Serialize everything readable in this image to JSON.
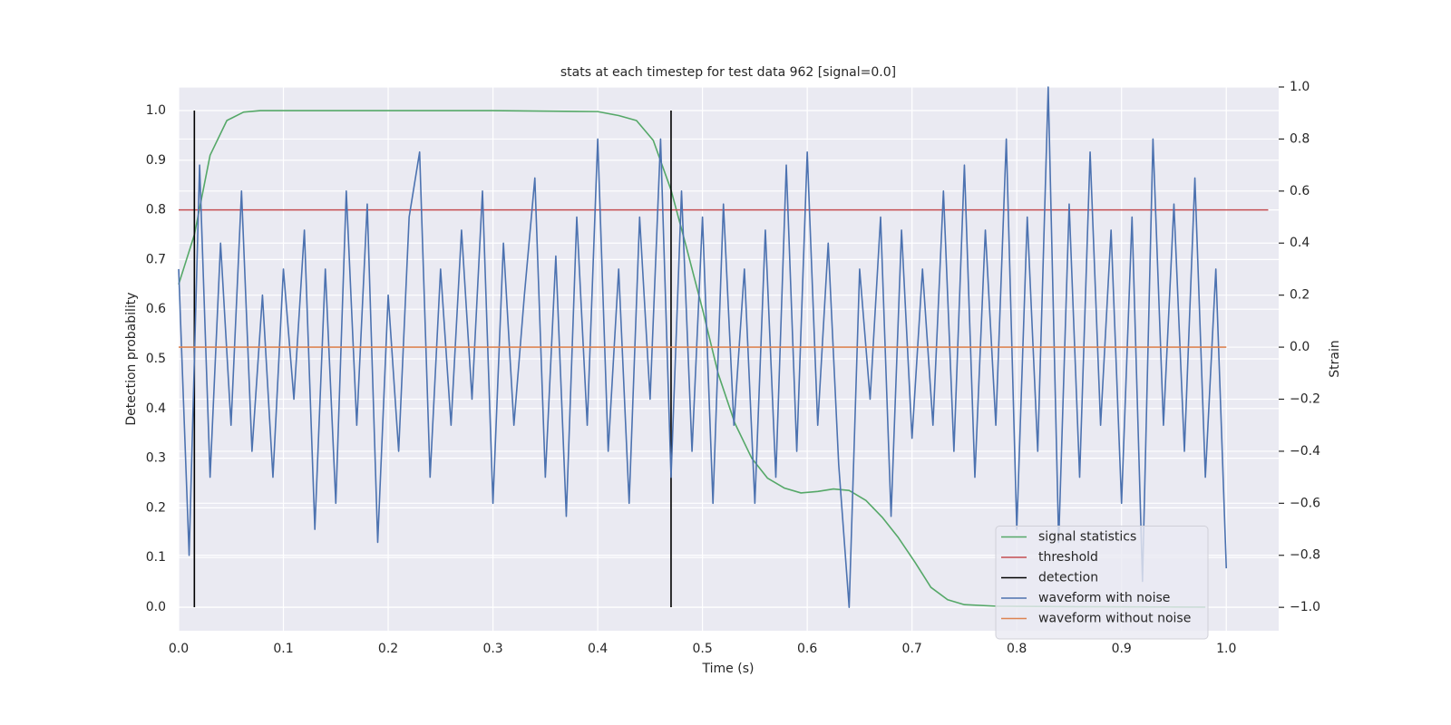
{
  "chart_data": {
    "type": "line",
    "title": "stats at each timestep for test data 962 [signal=0.0]",
    "x_label": "Time (s)",
    "y_label": "Detection probability",
    "y2_label": "Strain",
    "xlim": [
      0,
      1.05
    ],
    "ylim": [
      -0.0475,
      1.0475
    ],
    "y2lim": [
      -1.09,
      1.0
    ],
    "xticks": [
      {
        "value": 0,
        "label": "0.0"
      },
      0.1,
      0.2,
      0.3,
      0.4,
      0.5,
      0.6,
      0.7,
      0.8,
      0.9,
      {
        "value": 1,
        "label": "1.0"
      }
    ],
    "yticks": [
      {
        "value": 0,
        "label": "0.0"
      },
      0.1,
      0.2,
      0.3,
      0.4,
      0.5,
      0.6,
      0.7,
      0.8,
      0.9,
      {
        "value": 1,
        "label": "1.0"
      }
    ],
    "y2ticks": [
      {
        "value": -1,
        "label": "−1.0"
      },
      {
        "value": -0.8,
        "label": "−0.8"
      },
      {
        "value": -0.6,
        "label": "−0.6"
      },
      {
        "value": -0.4,
        "label": "−0.4"
      },
      {
        "value": -0.2,
        "label": "−0.2"
      },
      {
        "value": 0,
        "label": "0.0"
      },
      0.2,
      0.4,
      0.6,
      0.8,
      {
        "value": 1,
        "label": "1.0"
      }
    ],
    "grid": true,
    "legend": "lower right",
    "series": [
      {
        "name": "signal statistics",
        "color": "#55a868",
        "x": [
          0,
          0.015,
          0.03,
          0.046,
          0.062,
          0.078,
          0.1,
          0.2,
          0.3,
          0.4,
          0.42,
          0.437,
          0.453,
          0.47,
          0.484,
          0.5,
          0.515,
          0.531,
          0.547,
          0.562,
          0.578,
          0.594,
          0.61,
          0.625,
          0.64,
          0.656,
          0.672,
          0.687,
          0.703,
          0.718,
          0.734,
          0.75,
          0.78,
          0.85,
          0.98
        ],
        "values": [
          0.65,
          0.75,
          0.91,
          0.98,
          0.997,
          1.0,
          1.0,
          1.0,
          1.0,
          0.998,
          0.99,
          0.98,
          0.94,
          0.84,
          0.73,
          0.6,
          0.47,
          0.37,
          0.3,
          0.26,
          0.24,
          0.23,
          0.233,
          0.238,
          0.235,
          0.215,
          0.18,
          0.14,
          0.09,
          0.04,
          0.015,
          0.005,
          0.002,
          0.001,
          0
        ]
      },
      {
        "name": "threshold",
        "color": "#c44e52",
        "x": [
          0,
          1.04
        ],
        "values": [
          0.8,
          0.8
        ]
      },
      {
        "name": "detection",
        "color": "#000000",
        "x": [
          0.015,
          0.015,
          null,
          0.47,
          0.47
        ],
        "values": [
          0,
          1,
          null,
          0,
          1
        ]
      },
      {
        "name": "waveform with noise",
        "color": "#4c72b0",
        "axis": "y2",
        "x": [
          0,
          0.01,
          0.02,
          0.03,
          0.04,
          0.05,
          0.06,
          0.07,
          0.08,
          0.09,
          0.1,
          0.11,
          0.12,
          0.13,
          0.14,
          0.15,
          0.16,
          0.17,
          0.18,
          0.19,
          0.2,
          0.21,
          0.22,
          0.23,
          0.24,
          0.25,
          0.26,
          0.27,
          0.28,
          0.29,
          0.3,
          0.31,
          0.32,
          0.33,
          0.34,
          0.35,
          0.36,
          0.37,
          0.38,
          0.39,
          0.4,
          0.41,
          0.42,
          0.43,
          0.44,
          0.45,
          0.46,
          0.47,
          0.48,
          0.49,
          0.5,
          0.51,
          0.52,
          0.53,
          0.54,
          0.55,
          0.56,
          0.57,
          0.58,
          0.59,
          0.6,
          0.61,
          0.62,
          0.63,
          0.64,
          0.65,
          0.66,
          0.67,
          0.68,
          0.69,
          0.7,
          0.71,
          0.72,
          0.73,
          0.74,
          0.75,
          0.76,
          0.77,
          0.78,
          0.79,
          0.8,
          0.81,
          0.82,
          0.83,
          0.84,
          0.85,
          0.86,
          0.87,
          0.88,
          0.89,
          0.9,
          0.91,
          0.92,
          0.93,
          0.94,
          0.95,
          0.96,
          0.97,
          0.98,
          0.99,
          1.0
        ],
        "values": [
          0.3,
          -0.8,
          0.7,
          -0.5,
          0.4,
          -0.3,
          0.6,
          -0.4,
          0.2,
          -0.5,
          0.3,
          -0.2,
          0.45,
          -0.7,
          0.3,
          -0.6,
          0.6,
          -0.3,
          0.55,
          -0.75,
          0.2,
          -0.4,
          0.5,
          0.75,
          -0.5,
          0.3,
          -0.3,
          0.45,
          -0.2,
          0.6,
          -0.6,
          0.4,
          -0.3,
          0.2,
          0.65,
          -0.5,
          0.35,
          -0.65,
          0.5,
          -0.3,
          0.8,
          -0.4,
          0.3,
          -0.6,
          0.5,
          -0.2,
          0.8,
          -0.5,
          0.6,
          -0.4,
          0.5,
          -0.6,
          0.55,
          -0.3,
          0.3,
          -0.6,
          0.45,
          -0.5,
          0.7,
          -0.4,
          0.75,
          -0.3,
          0.4,
          -0.45,
          -1.0,
          0.3,
          -0.2,
          0.5,
          -0.65,
          0.45,
          -0.35,
          0.3,
          -0.3,
          0.6,
          -0.4,
          0.7,
          -0.5,
          0.45,
          -0.3,
          0.8,
          -0.7,
          0.5,
          -0.4,
          1.0,
          -0.75,
          0.55,
          -0.5,
          0.75,
          -0.3,
          0.45,
          -0.6,
          0.5,
          -0.9,
          0.8,
          -0.3,
          0.55,
          -0.4,
          0.65,
          -0.5,
          0.3,
          -0.85
        ]
      },
      {
        "name": "waveform without noise",
        "color": "#dd8452",
        "axis": "y2",
        "x": [
          0,
          1.0
        ],
        "values": [
          0,
          0
        ]
      }
    ]
  }
}
